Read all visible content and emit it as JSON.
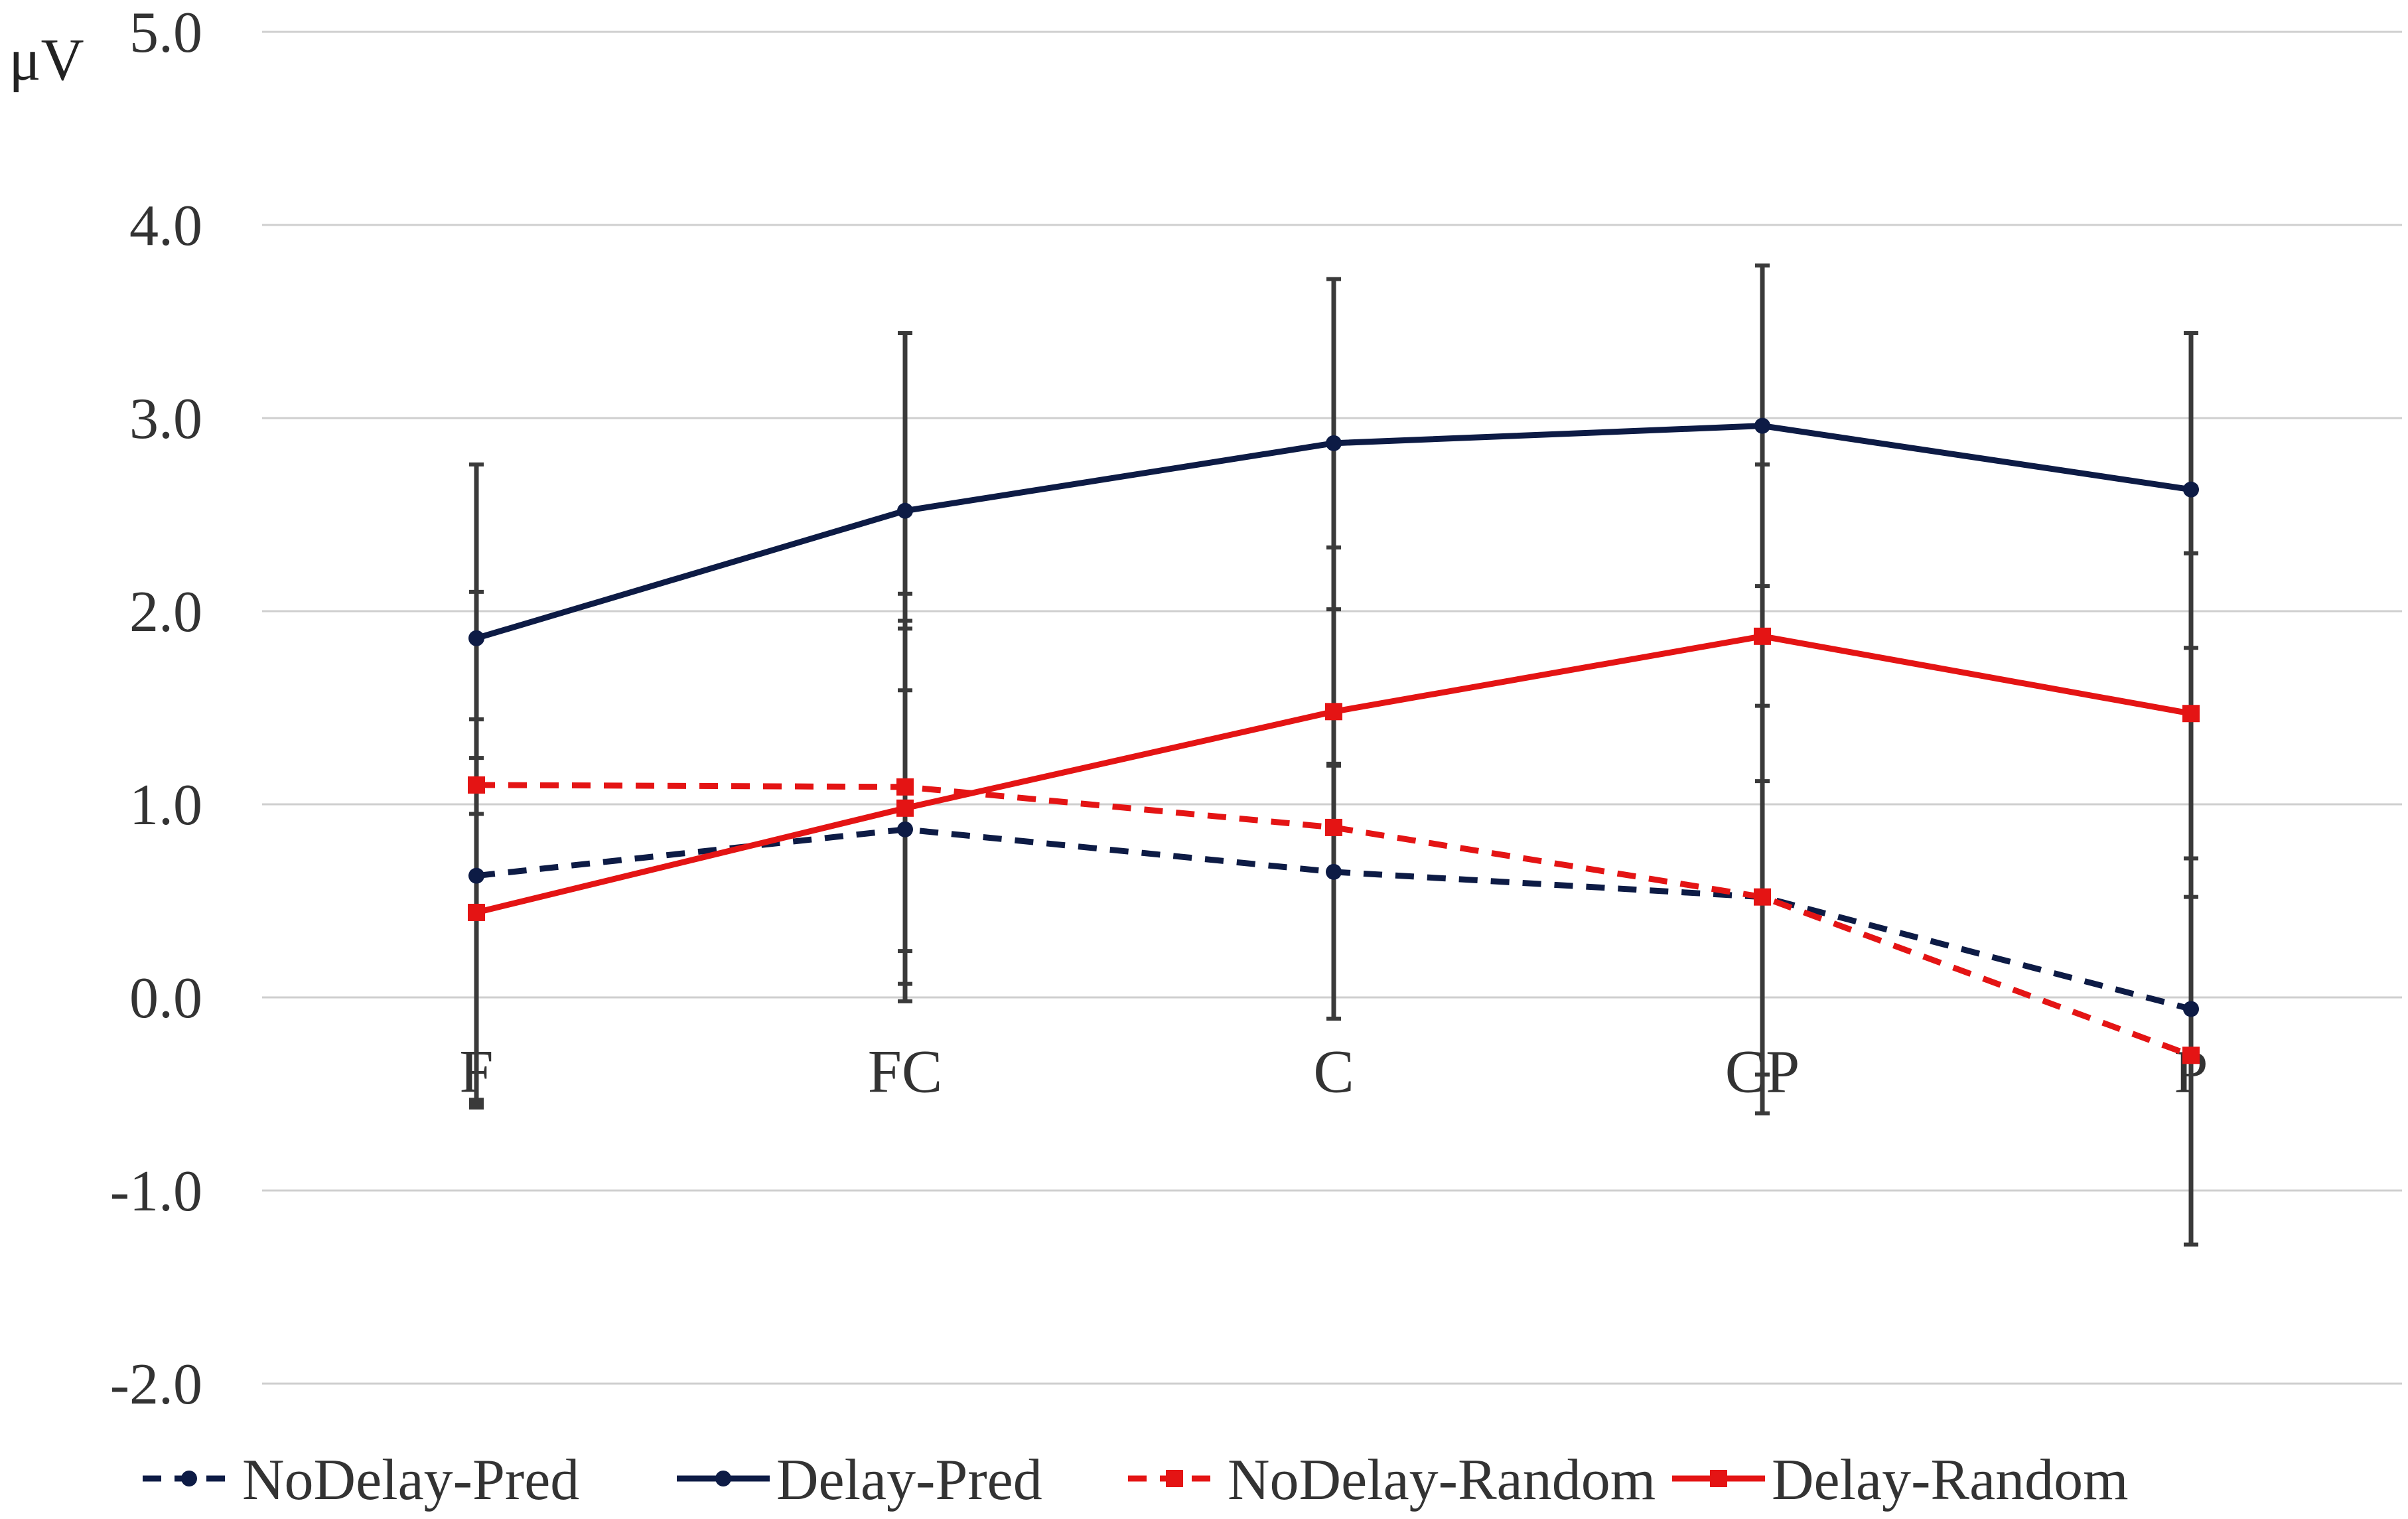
{
  "chart_data": {
    "type": "line",
    "title": "",
    "xlabel": "",
    "ylabel": "μV",
    "ylim": [
      -2.0,
      5.0
    ],
    "yticks": [
      -2.0,
      -1.0,
      0.0,
      1.0,
      2.0,
      3.0,
      4.0,
      5.0
    ],
    "ytick_labels": [
      "-2.0",
      "-1.0",
      "0.0",
      "1.0",
      "2.0",
      "3.0",
      "4.0",
      "5.0"
    ],
    "grid": true,
    "legend_position": "bottom",
    "categories": [
      "F",
      "FC",
      "C",
      "CP",
      "P"
    ],
    "series": [
      {
        "name": "NoDelay-Pred",
        "color": "#0d1b45",
        "dash": "dashed",
        "marker": "circle",
        "values": [
          0.63,
          0.87,
          0.65,
          0.52,
          -0.06
        ],
        "error_low": [
          -0.57,
          -0.02,
          -0.11,
          -0.6,
          -1.28
        ],
        "error_high": [
          1.44,
          1.95,
          2.01,
          2.13,
          1.81
        ]
      },
      {
        "name": "Delay-Pred",
        "color": "#0d1b45",
        "dash": "solid",
        "marker": "circle",
        "values": [
          1.86,
          2.52,
          2.87,
          2.96,
          2.63
        ],
        "error_low": [
          0.95,
          1.59,
          1.21,
          1.51,
          0.52
        ],
        "error_high": [
          2.76,
          3.44,
          3.72,
          3.79,
          3.44
        ]
      },
      {
        "name": "NoDelay-Random",
        "color": "#e41414",
        "dash": "dashed",
        "marker": "square",
        "values": [
          1.1,
          1.09,
          0.88,
          0.52,
          -0.3
        ],
        "error_low": [
          -0.55,
          0.07,
          -0.11,
          -0.4,
          -1.28
        ],
        "error_high": [
          2.1,
          2.09,
          2.33,
          2.76,
          2.3
        ]
      },
      {
        "name": "Delay-Random",
        "color": "#e41414",
        "dash": "solid",
        "marker": "square",
        "values": [
          0.44,
          0.98,
          1.48,
          1.87,
          1.47
        ],
        "error_low": [
          -0.53,
          0.24,
          1.2,
          1.12,
          0.72
        ],
        "error_high": [
          1.24,
          1.91,
          2.33,
          2.76,
          2.3
        ]
      }
    ]
  }
}
